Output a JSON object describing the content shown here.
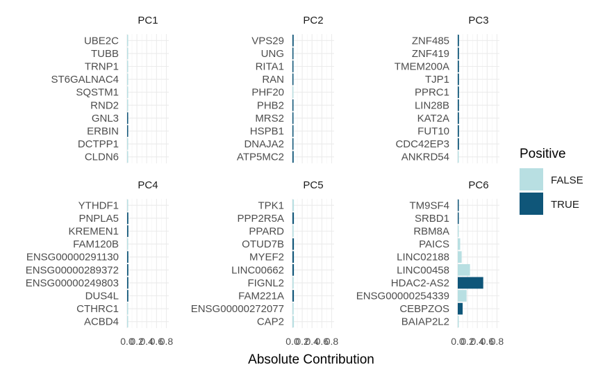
{
  "chart_data": {
    "type": "bar",
    "orientation": "horizontal",
    "xlabel": "Absolute Contribution",
    "xlim": [
      0,
      0.85
    ],
    "xticks": [
      "0.0",
      "0.2",
      "0.4",
      "0.6",
      "0.8"
    ],
    "grid": true,
    "legend": {
      "title": "Positive",
      "position": "right",
      "entries": [
        {
          "label": "FALSE",
          "color": "#b8dfe2"
        },
        {
          "label": "TRUE",
          "color": "#0f5679"
        }
      ]
    },
    "panels": [
      {
        "title": "PC1",
        "genes": [
          "UBE2C",
          "TUBB",
          "TRNP1",
          "ST6GALNAC4",
          "SQSTM1",
          "RND2",
          "GNL3",
          "ERBIN",
          "DCTPP1",
          "CLDN6"
        ],
        "values": [
          0.001,
          0.001,
          0.001,
          0.001,
          0.001,
          0.001,
          0.02,
          0.02,
          0.001,
          0.001
        ],
        "positive": [
          false,
          false,
          false,
          false,
          false,
          false,
          true,
          true,
          false,
          false
        ]
      },
      {
        "title": "PC2",
        "genes": [
          "VPS29",
          "UNG",
          "RITA1",
          "RAN",
          "PHF20",
          "PHB2",
          "MRS2",
          "HSPB1",
          "DNAJA2",
          "ATP5MC2"
        ],
        "values": [
          0.025,
          0.02,
          0.02,
          0.02,
          0.005,
          0.02,
          0.02,
          0.02,
          0.02,
          0.025
        ],
        "positive": [
          true,
          true,
          true,
          true,
          false,
          true,
          true,
          true,
          true,
          true
        ]
      },
      {
        "title": "PC3",
        "genes": [
          "ZNF485",
          "ZNF419",
          "TMEM200A",
          "TJP1",
          "PPRC1",
          "LIN28B",
          "KAT2A",
          "FUT10",
          "CDC42EP3",
          "ANKRD54"
        ],
        "values": [
          0.025,
          0.025,
          0.025,
          0.025,
          0.025,
          0.025,
          0.025,
          0.025,
          0.025,
          0.02
        ],
        "positive": [
          true,
          true,
          true,
          true,
          true,
          true,
          true,
          true,
          true,
          false
        ]
      },
      {
        "title": "PC4",
        "genes": [
          "YTHDF1",
          "PNPLA5",
          "KREMEN1",
          "FAM120B",
          "ENSG00000291130",
          "ENSG00000289372",
          "ENSG00000249803",
          "DUS4L",
          "CTHRC1",
          "ACBD4"
        ],
        "values": [
          0.02,
          0.025,
          0.025,
          0.02,
          0.025,
          0.025,
          0.025,
          0.025,
          0.02,
          0.02
        ],
        "positive": [
          false,
          true,
          true,
          false,
          true,
          true,
          true,
          true,
          false,
          false
        ]
      },
      {
        "title": "PC5",
        "genes": [
          "TPK1",
          "PPP2R5A",
          "PPARD",
          "OTUD7B",
          "MYEF2",
          "LINC00662",
          "FIGNL2",
          "FAM221A",
          "ENSG00000272077",
          "CAP2"
        ],
        "values": [
          0.03,
          0.03,
          0.025,
          0.03,
          0.03,
          0.03,
          0.025,
          0.03,
          0.025,
          0.03
        ],
        "positive": [
          false,
          true,
          false,
          true,
          true,
          true,
          false,
          true,
          false,
          false
        ]
      },
      {
        "title": "PC6",
        "genes": [
          "TM9SF4",
          "SRBD1",
          "RBM8A",
          "PAICS",
          "LINC02188",
          "LINC00458",
          "HDAC2-AS2",
          "ENSG00000254339",
          "CEBPZOS",
          "BAIAP2L2"
        ],
        "values": [
          0.02,
          0.02,
          0.02,
          0.05,
          0.08,
          0.25,
          0.52,
          0.18,
          0.1,
          0.02
        ],
        "positive": [
          true,
          true,
          false,
          false,
          false,
          false,
          true,
          false,
          true,
          false
        ]
      }
    ]
  }
}
